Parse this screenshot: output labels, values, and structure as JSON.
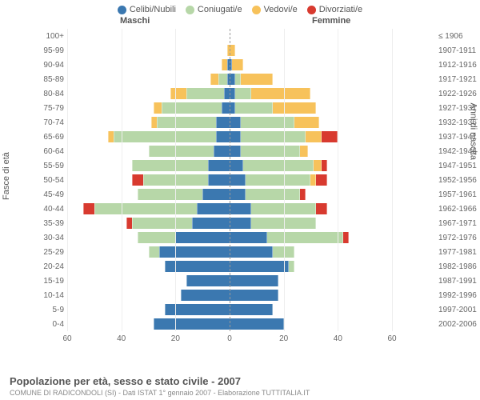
{
  "legend": [
    {
      "label": "Celibi/Nubili",
      "color": "#3b78b0"
    },
    {
      "label": "Coniugati/e",
      "color": "#b7d7a8"
    },
    {
      "label": "Vedovi/e",
      "color": "#f7c25b"
    },
    {
      "label": "Divorziati/e",
      "color": "#d83a2f"
    }
  ],
  "side_left": "Maschi",
  "side_right": "Femmine",
  "vaxis_left": "Fasce di età",
  "vaxis_right": "Anni di nascita",
  "title": "Popolazione per età, sesso e stato civile - 2007",
  "subtitle": "COMUNE DI RADICONDOLI (SI) - Dati ISTAT 1° gennaio 2007 - Elaborazione TUTTITALIA.IT",
  "xlim": 60,
  "xticks": [
    60,
    40,
    20,
    0,
    20,
    40,
    60
  ],
  "colors": {
    "s": "#3b78b0",
    "m": "#b7d7a8",
    "w": "#f7c25b",
    "d": "#d83a2f"
  },
  "grid_color": "#eeeeee",
  "centerline_color": "#999999",
  "background": "#ffffff",
  "rows": [
    {
      "age": "100+",
      "birth": "≤ 1906",
      "L": {
        "s": 0,
        "m": 0,
        "w": 0,
        "d": 0
      },
      "R": {
        "s": 0,
        "m": 0,
        "w": 0,
        "d": 0
      }
    },
    {
      "age": "95-99",
      "birth": "1907-1911",
      "L": {
        "s": 0,
        "m": 0,
        "w": 1,
        "d": 0
      },
      "R": {
        "s": 0,
        "m": 0,
        "w": 2,
        "d": 0
      }
    },
    {
      "age": "90-94",
      "birth": "1912-1916",
      "L": {
        "s": 1,
        "m": 0,
        "w": 2,
        "d": 0
      },
      "R": {
        "s": 1,
        "m": 0,
        "w": 4,
        "d": 0
      }
    },
    {
      "age": "85-89",
      "birth": "1917-1921",
      "L": {
        "s": 1,
        "m": 3,
        "w": 3,
        "d": 0
      },
      "R": {
        "s": 2,
        "m": 2,
        "w": 12,
        "d": 0
      }
    },
    {
      "age": "80-84",
      "birth": "1922-1926",
      "L": {
        "s": 2,
        "m": 14,
        "w": 6,
        "d": 0
      },
      "R": {
        "s": 2,
        "m": 6,
        "w": 22,
        "d": 0
      }
    },
    {
      "age": "75-79",
      "birth": "1927-1931",
      "L": {
        "s": 3,
        "m": 22,
        "w": 3,
        "d": 0
      },
      "R": {
        "s": 2,
        "m": 14,
        "w": 16,
        "d": 0
      }
    },
    {
      "age": "70-74",
      "birth": "1932-1936",
      "L": {
        "s": 5,
        "m": 22,
        "w": 2,
        "d": 0
      },
      "R": {
        "s": 4,
        "m": 20,
        "w": 9,
        "d": 0
      }
    },
    {
      "age": "65-69",
      "birth": "1937-1941",
      "L": {
        "s": 5,
        "m": 38,
        "w": 2,
        "d": 0
      },
      "R": {
        "s": 4,
        "m": 24,
        "w": 6,
        "d": 6
      }
    },
    {
      "age": "60-64",
      "birth": "1942-1946",
      "L": {
        "s": 6,
        "m": 24,
        "w": 0,
        "d": 0
      },
      "R": {
        "s": 4,
        "m": 22,
        "w": 3,
        "d": 0
      }
    },
    {
      "age": "55-59",
      "birth": "1947-1951",
      "L": {
        "s": 8,
        "m": 28,
        "w": 0,
        "d": 0
      },
      "R": {
        "s": 5,
        "m": 26,
        "w": 3,
        "d": 2
      }
    },
    {
      "age": "50-54",
      "birth": "1952-1956",
      "L": {
        "s": 8,
        "m": 24,
        "w": 0,
        "d": 4
      },
      "R": {
        "s": 6,
        "m": 24,
        "w": 2,
        "d": 4
      }
    },
    {
      "age": "45-49",
      "birth": "1957-1961",
      "L": {
        "s": 10,
        "m": 24,
        "w": 0,
        "d": 0
      },
      "R": {
        "s": 6,
        "m": 20,
        "w": 0,
        "d": 2
      }
    },
    {
      "age": "40-44",
      "birth": "1962-1966",
      "L": {
        "s": 12,
        "m": 38,
        "w": 0,
        "d": 4
      },
      "R": {
        "s": 8,
        "m": 24,
        "w": 0,
        "d": 4
      }
    },
    {
      "age": "35-39",
      "birth": "1967-1971",
      "L": {
        "s": 14,
        "m": 22,
        "w": 0,
        "d": 2
      },
      "R": {
        "s": 8,
        "m": 24,
        "w": 0,
        "d": 0
      }
    },
    {
      "age": "30-34",
      "birth": "1972-1976",
      "L": {
        "s": 20,
        "m": 14,
        "w": 0,
        "d": 0
      },
      "R": {
        "s": 14,
        "m": 28,
        "w": 0,
        "d": 2
      }
    },
    {
      "age": "25-29",
      "birth": "1977-1981",
      "L": {
        "s": 26,
        "m": 4,
        "w": 0,
        "d": 0
      },
      "R": {
        "s": 16,
        "m": 8,
        "w": 0,
        "d": 0
      }
    },
    {
      "age": "20-24",
      "birth": "1982-1986",
      "L": {
        "s": 24,
        "m": 0,
        "w": 0,
        "d": 0
      },
      "R": {
        "s": 22,
        "m": 2,
        "w": 0,
        "d": 0
      }
    },
    {
      "age": "15-19",
      "birth": "1987-1991",
      "L": {
        "s": 16,
        "m": 0,
        "w": 0,
        "d": 0
      },
      "R": {
        "s": 18,
        "m": 0,
        "w": 0,
        "d": 0
      }
    },
    {
      "age": "10-14",
      "birth": "1992-1996",
      "L": {
        "s": 18,
        "m": 0,
        "w": 0,
        "d": 0
      },
      "R": {
        "s": 18,
        "m": 0,
        "w": 0,
        "d": 0
      }
    },
    {
      "age": "5-9",
      "birth": "1997-2001",
      "L": {
        "s": 24,
        "m": 0,
        "w": 0,
        "d": 0
      },
      "R": {
        "s": 16,
        "m": 0,
        "w": 0,
        "d": 0
      }
    },
    {
      "age": "0-4",
      "birth": "2002-2006",
      "L": {
        "s": 28,
        "m": 0,
        "w": 0,
        "d": 0
      },
      "R": {
        "s": 20,
        "m": 0,
        "w": 0,
        "d": 0
      }
    }
  ]
}
